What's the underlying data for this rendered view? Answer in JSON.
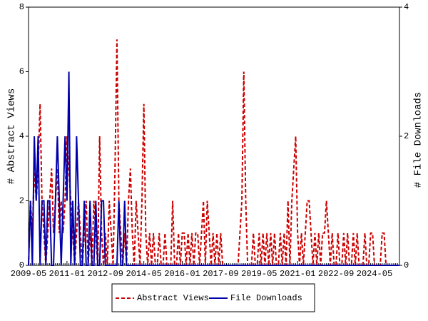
{
  "chart_data": {
    "type": "line",
    "y_label": "# Abstract Views",
    "y2_label": "# File Downloads",
    "categories": [
      "2009-05",
      null,
      null,
      null,
      null,
      null,
      null,
      null,
      null,
      null,
      null,
      null,
      null,
      null,
      null,
      null,
      null,
      null,
      null,
      null,
      "2011-01",
      null,
      null,
      null,
      null,
      null,
      null,
      null,
      null,
      null,
      null,
      null,
      null,
      null,
      null,
      null,
      null,
      null,
      null,
      null,
      "2012-09",
      null,
      null,
      null,
      null,
      null,
      null,
      null,
      null,
      null,
      null,
      null,
      null,
      null,
      null,
      null,
      null,
      null,
      null,
      null,
      "2014-05",
      null,
      null,
      null,
      null,
      null,
      null,
      null,
      null,
      null,
      null,
      null,
      null,
      null,
      null,
      null,
      null,
      null,
      null,
      null,
      "2016-01",
      null,
      null,
      null,
      null,
      null,
      null,
      null,
      null,
      null,
      null,
      null,
      null,
      null,
      null,
      null,
      null,
      null,
      null,
      null,
      "2017-09",
      null,
      null,
      null,
      null,
      null,
      null,
      null,
      null,
      null,
      null,
      null,
      null,
      null,
      null,
      null,
      null,
      null,
      null,
      null,
      "2019-05",
      null,
      null,
      null,
      null,
      null,
      null,
      null,
      null,
      null,
      null,
      null,
      null,
      null,
      null,
      null,
      null,
      null,
      null,
      null,
      "2021-01",
      null,
      null,
      null,
      null,
      null,
      null,
      null,
      null,
      null,
      null,
      null,
      null,
      null,
      null,
      null,
      null,
      null,
      null,
      null,
      "2022-09",
      null,
      null,
      null,
      null,
      null,
      null,
      null,
      null,
      null,
      null,
      null,
      null,
      null,
      null,
      null,
      null,
      null,
      null,
      null,
      "2024-05",
      null,
      null,
      null,
      null,
      null,
      null,
      null,
      null,
      null,
      null,
      null,
      null,
      null
    ],
    "series": [
      {
        "name": "Abstract Views",
        "color": "#cc0000",
        "dash": true,
        "values": [
          0,
          2,
          1,
          3,
          2,
          3,
          5,
          2,
          1,
          0,
          1,
          2,
          3,
          1,
          2,
          3,
          1,
          2,
          1,
          2,
          4,
          3,
          2,
          1,
          0,
          1,
          2,
          1,
          0,
          1,
          2,
          0,
          1,
          0,
          2,
          1,
          0,
          4,
          1,
          0,
          1,
          0,
          2,
          1,
          0,
          3,
          7,
          2,
          1,
          0,
          1,
          0,
          2,
          3,
          1,
          0,
          2,
          1,
          0,
          2,
          5,
          1,
          0,
          1,
          0,
          1,
          0,
          0,
          1,
          0,
          0,
          1,
          0,
          0,
          0,
          2,
          0,
          0,
          1,
          0,
          1,
          1,
          0,
          1,
          0,
          1,
          0,
          1,
          1,
          0,
          1,
          2,
          0,
          2,
          1,
          0,
          1,
          0,
          1,
          0,
          1,
          0,
          0,
          0,
          0,
          0,
          0,
          0,
          0,
          0,
          1,
          2,
          6,
          2,
          0,
          0,
          0,
          1,
          0,
          0,
          1,
          0,
          1,
          0,
          1,
          0,
          1,
          0,
          1,
          0,
          0,
          1,
          0,
          1,
          0,
          2,
          0,
          2,
          3,
          4,
          1,
          0,
          1,
          0,
          1,
          2,
          2,
          1,
          0,
          1,
          0,
          1,
          0,
          1,
          1,
          2,
          1,
          0,
          1,
          0,
          0,
          1,
          0,
          0,
          1,
          0,
          1,
          0,
          0,
          1,
          0,
          1,
          0,
          0,
          0,
          1,
          0,
          0,
          1,
          1,
          0,
          0,
          0,
          0,
          1,
          1,
          0,
          0,
          0,
          0,
          0,
          0,
          0,
          0
        ]
      },
      {
        "name": "File Downloads",
        "color": "#0000aa",
        "dash": false,
        "axis": "y2",
        "values": [
          0,
          1,
          0,
          2,
          1,
          2,
          0,
          1,
          1,
          0,
          1,
          1,
          0,
          0,
          1,
          2,
          1,
          0,
          1,
          2,
          1,
          3,
          0,
          1,
          0,
          2,
          1,
          0,
          0,
          1,
          0,
          0,
          1,
          0,
          0,
          1,
          0,
          0,
          1,
          1,
          0,
          0,
          0,
          0,
          0,
          0,
          0,
          1,
          0,
          0,
          1,
          0,
          0,
          0,
          0,
          0,
          0,
          0,
          0,
          0,
          0,
          0,
          0,
          0,
          0,
          0,
          0,
          0,
          0,
          0,
          0,
          0,
          0,
          0,
          0,
          0,
          0,
          0,
          0,
          0,
          0,
          0,
          0,
          0,
          0,
          0,
          0,
          0,
          0,
          0,
          0,
          0,
          0,
          0,
          0,
          0,
          0,
          0,
          0,
          0,
          0,
          0,
          0,
          0,
          0,
          0,
          0,
          0,
          0,
          0,
          0,
          0,
          0,
          0,
          0,
          0,
          0,
          0,
          0,
          0,
          0,
          0,
          0,
          0,
          0,
          0,
          0,
          0,
          0,
          0,
          0,
          0,
          0,
          0,
          0,
          0,
          0,
          0,
          0,
          0,
          0,
          0,
          0,
          0,
          0,
          0,
          0,
          0,
          0,
          0,
          0,
          0,
          0,
          0,
          0,
          0,
          0,
          0,
          0,
          0,
          0,
          0,
          0,
          0,
          0,
          0,
          0,
          0,
          0,
          0,
          0,
          0,
          0,
          0,
          0,
          0,
          0,
          0,
          0,
          0,
          0,
          0,
          0,
          0,
          0,
          0,
          0,
          0,
          0,
          0,
          0,
          0,
          0,
          0
        ]
      }
    ],
    "ylim": [
      0,
      8
    ],
    "yticks": [
      0,
      2,
      4,
      6,
      8
    ],
    "y2lim": [
      0,
      4
    ],
    "y2ticks": [
      0,
      2,
      4
    ]
  }
}
